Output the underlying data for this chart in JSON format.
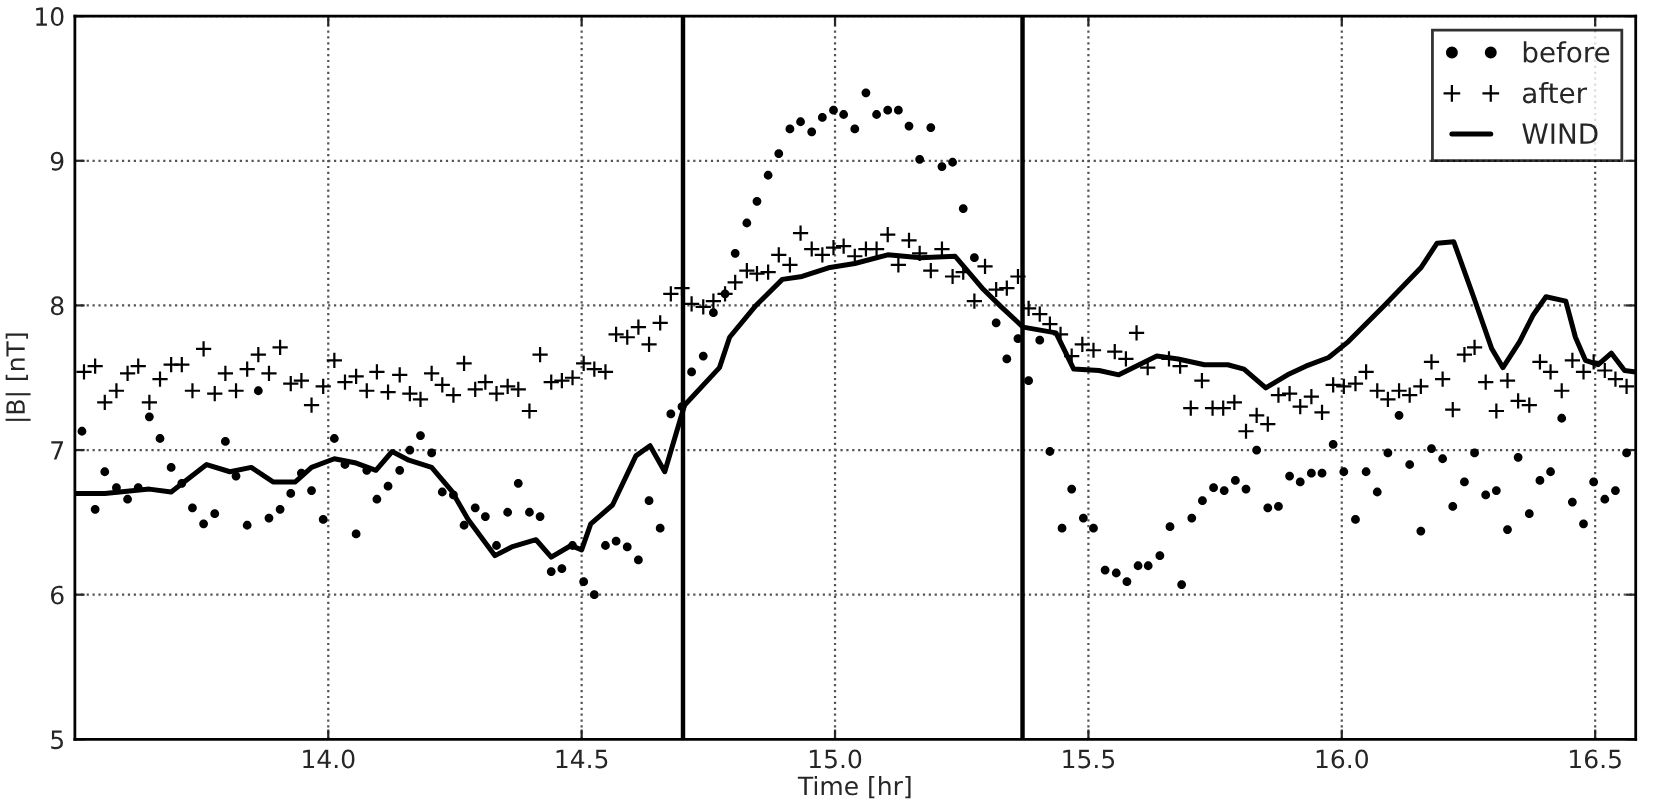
{
  "chart_data": {
    "type": "scatter",
    "xlabel": "Time [hr]",
    "ylabel": "|B| [nT]",
    "xlim": [
      13.5,
      16.58
    ],
    "ylim": [
      5,
      10
    ],
    "xticks": [
      {
        "value": 14.0,
        "label": "14.0"
      },
      {
        "value": 14.5,
        "label": "14.5"
      },
      {
        "value": 15.0,
        "label": "15.0"
      },
      {
        "value": 15.5,
        "label": "15.5"
      },
      {
        "value": 16.0,
        "label": "16.0"
      },
      {
        "value": 16.5,
        "label": "16.5"
      }
    ],
    "yticks": [
      5,
      6,
      7,
      8,
      9,
      10
    ],
    "grid": true,
    "legend": "top right",
    "ref_lines": [
      {
        "axis": "x",
        "value": 14.7,
        "color": "#000000",
        "line_style": "solid"
      },
      {
        "axis": "x",
        "value": 15.37,
        "color": "#000000",
        "line_style": "solid"
      }
    ],
    "series": [
      {
        "name": "before",
        "marker": "circle",
        "color": "#000000",
        "x": [
          13.514,
          13.54,
          13.559,
          13.582,
          13.604,
          13.625,
          13.647,
          13.668,
          13.69,
          13.711,
          13.732,
          13.754,
          13.776,
          13.797,
          13.818,
          13.84,
          13.862,
          13.883,
          13.905,
          13.926,
          13.947,
          13.967,
          13.99,
          14.012,
          14.033,
          14.055,
          14.076,
          14.096,
          14.118,
          14.141,
          14.161,
          14.182,
          14.204,
          14.225,
          14.247,
          14.268,
          14.29,
          14.31,
          14.332,
          14.354,
          14.375,
          14.397,
          14.418,
          14.44,
          14.461,
          14.482,
          14.504,
          14.525,
          14.547,
          14.568,
          14.59,
          14.612,
          14.633,
          14.655,
          14.676,
          14.698,
          14.717,
          14.74,
          14.76,
          14.783,
          14.803,
          14.826,
          14.846,
          14.868,
          14.889,
          14.911,
          14.932,
          14.954,
          14.975,
          14.997,
          15.017,
          15.039,
          15.061,
          15.082,
          15.104,
          15.125,
          15.146,
          15.167,
          15.189,
          15.211,
          15.232,
          15.253,
          15.275,
          15.318,
          15.339,
          15.361,
          15.382,
          15.404,
          15.424,
          15.448,
          15.467,
          15.49,
          15.51,
          15.533,
          15.555,
          15.576,
          15.598,
          15.618,
          15.641,
          15.661,
          15.684,
          15.704,
          15.725,
          15.747,
          15.768,
          15.79,
          15.811,
          15.832,
          15.854,
          15.875,
          15.897,
          15.918,
          15.94,
          15.961,
          15.983,
          16.004,
          16.027,
          16.048,
          16.07,
          16.091,
          16.113,
          16.134,
          16.156,
          16.177,
          16.199,
          16.219,
          16.242,
          16.262,
          16.284,
          16.305,
          16.327,
          16.348,
          16.37,
          16.391,
          16.412,
          16.434,
          16.455,
          16.477,
          16.497,
          16.519,
          16.54,
          16.562
        ],
        "values": [
          7.13,
          6.59,
          6.85,
          6.74,
          6.66,
          6.74,
          7.23,
          7.08,
          6.88,
          6.77,
          6.6,
          6.49,
          6.56,
          7.06,
          6.82,
          6.48,
          7.41,
          6.53,
          6.59,
          6.7,
          6.84,
          6.72,
          6.52,
          7.08,
          6.9,
          6.42,
          6.86,
          6.66,
          6.75,
          6.86,
          7.0,
          7.1,
          6.98,
          6.71,
          6.69,
          6.48,
          6.6,
          6.54,
          6.34,
          6.57,
          6.77,
          6.57,
          6.54,
          6.16,
          6.18,
          6.34,
          6.09,
          6.0,
          6.34,
          6.37,
          6.33,
          6.24,
          6.65,
          6.46,
          7.25,
          7.3,
          7.54,
          7.65,
          7.95,
          8.08,
          8.36,
          8.57,
          8.72,
          8.9,
          9.05,
          9.22,
          9.27,
          9.2,
          9.3,
          9.35,
          9.32,
          9.22,
          9.47,
          9.32,
          9.35,
          9.35,
          9.24,
          9.01,
          9.23,
          8.96,
          8.99,
          8.67,
          8.33,
          7.88,
          7.63,
          7.77,
          7.48,
          7.76,
          6.99,
          6.46,
          6.73,
          6.53,
          6.46,
          6.17,
          6.15,
          6.09,
          6.2,
          6.2,
          6.27,
          6.47,
          6.07,
          6.53,
          6.65,
          6.74,
          6.72,
          6.79,
          6.73,
          7.0,
          6.6,
          6.61,
          6.82,
          6.78,
          6.84,
          6.84,
          7.04,
          6.85,
          6.52,
          6.85,
          6.71,
          6.98,
          7.24,
          6.9,
          6.44,
          7.01,
          6.94,
          6.61,
          6.78,
          6.98,
          6.69,
          6.72,
          6.45,
          6.95,
          6.56,
          6.79,
          6.85,
          7.22,
          6.64,
          6.49,
          6.78,
          6.66,
          6.72,
          6.98
        ]
      },
      {
        "name": "after",
        "marker": "cross",
        "color": "#000000",
        "x": [
          13.518,
          13.54,
          13.559,
          13.582,
          13.604,
          13.625,
          13.647,
          13.668,
          13.69,
          13.711,
          13.732,
          13.754,
          13.776,
          13.797,
          13.818,
          13.84,
          13.862,
          13.883,
          13.905,
          13.926,
          13.947,
          13.967,
          13.99,
          14.012,
          14.033,
          14.055,
          14.076,
          14.096,
          14.118,
          14.141,
          14.161,
          14.182,
          14.204,
          14.225,
          14.247,
          14.268,
          14.29,
          14.31,
          14.332,
          14.354,
          14.375,
          14.397,
          14.418,
          14.44,
          14.461,
          14.482,
          14.504,
          14.525,
          14.547,
          14.568,
          14.59,
          14.612,
          14.633,
          14.655,
          14.676,
          14.698,
          14.717,
          14.74,
          14.76,
          14.783,
          14.803,
          14.826,
          14.846,
          14.868,
          14.889,
          14.911,
          14.932,
          14.954,
          14.975,
          14.997,
          15.017,
          15.039,
          15.061,
          15.082,
          15.104,
          15.125,
          15.146,
          15.167,
          15.189,
          15.211,
          15.232,
          15.253,
          15.275,
          15.296,
          15.318,
          15.339,
          15.361,
          15.382,
          15.404,
          15.424,
          15.445,
          15.467,
          15.488,
          15.51,
          15.552,
          15.574,
          15.595,
          15.617,
          15.659,
          15.681,
          15.702,
          15.724,
          15.745,
          15.766,
          15.788,
          15.811,
          15.832,
          15.854,
          15.875,
          15.897,
          15.918,
          15.94,
          15.961,
          15.983,
          16.004,
          16.027,
          16.048,
          16.07,
          16.091,
          16.113,
          16.134,
          16.156,
          16.177,
          16.199,
          16.219,
          16.242,
          16.262,
          16.284,
          16.305,
          16.327,
          16.348,
          16.37,
          16.391,
          16.412,
          16.434,
          16.455,
          16.477,
          16.497,
          16.519,
          16.54,
          16.562
        ],
        "values": [
          7.54,
          7.58,
          7.33,
          7.41,
          7.53,
          7.58,
          7.33,
          7.49,
          7.59,
          7.59,
          7.41,
          7.7,
          7.39,
          7.53,
          7.41,
          7.56,
          7.66,
          7.53,
          7.71,
          7.46,
          7.48,
          7.31,
          7.44,
          7.62,
          7.47,
          7.51,
          7.41,
          7.54,
          7.4,
          7.52,
          7.39,
          7.35,
          7.53,
          7.45,
          7.38,
          7.6,
          7.42,
          7.47,
          7.39,
          7.44,
          7.42,
          7.27,
          7.66,
          7.47,
          7.48,
          7.5,
          7.6,
          7.56,
          7.54,
          7.8,
          7.78,
          7.85,
          7.73,
          7.88,
          8.08,
          8.12,
          8.01,
          7.99,
          8.03,
          8.08,
          8.16,
          8.24,
          8.22,
          8.23,
          8.35,
          8.28,
          8.5,
          8.39,
          8.35,
          8.4,
          8.41,
          8.34,
          8.39,
          8.39,
          8.49,
          8.28,
          8.45,
          8.36,
          8.24,
          8.39,
          8.2,
          8.23,
          8.03,
          8.27,
          8.11,
          8.12,
          8.2,
          7.98,
          7.94,
          7.87,
          7.8,
          7.65,
          7.73,
          7.69,
          7.68,
          7.63,
          7.81,
          7.57,
          7.63,
          7.58,
          7.29,
          7.48,
          7.29,
          7.29,
          7.33,
          7.13,
          7.24,
          7.18,
          7.38,
          7.39,
          7.3,
          7.37,
          7.26,
          7.45,
          7.44,
          7.46,
          7.54,
          7.41,
          7.35,
          7.41,
          7.38,
          7.44,
          7.61,
          7.49,
          7.28,
          7.66,
          7.71,
          7.47,
          7.27,
          7.48,
          7.34,
          7.31,
          7.61,
          7.54,
          7.41,
          7.62,
          7.54,
          7.61,
          7.55,
          7.49,
          7.44
        ]
      },
      {
        "name": "WIND",
        "type": "line",
        "marker": "none",
        "line_style": "solid",
        "color": "#000000",
        "x": [
          13.5,
          13.559,
          13.647,
          13.69,
          13.76,
          13.806,
          13.848,
          13.891,
          13.935,
          13.967,
          14.012,
          14.055,
          14.094,
          14.126,
          14.159,
          14.204,
          14.243,
          14.276,
          14.329,
          14.362,
          14.41,
          14.44,
          14.479,
          14.5,
          14.518,
          14.561,
          14.607,
          14.635,
          14.664,
          14.703,
          14.772,
          14.792,
          14.844,
          14.896,
          14.935,
          14.987,
          15.039,
          15.104,
          15.169,
          15.237,
          15.293,
          15.328,
          15.371,
          15.436,
          15.471,
          15.521,
          15.56,
          15.635,
          15.677,
          15.729,
          15.775,
          15.807,
          15.85,
          15.893,
          15.929,
          15.974,
          16.013,
          16.084,
          16.156,
          16.188,
          16.221,
          16.26,
          16.279,
          16.296,
          16.318,
          16.351,
          16.377,
          16.403,
          16.442,
          16.461,
          16.481,
          16.506,
          16.532,
          16.558,
          16.58
        ],
        "values": [
          6.7,
          6.7,
          6.73,
          6.71,
          6.9,
          6.85,
          6.88,
          6.78,
          6.78,
          6.88,
          6.94,
          6.91,
          6.86,
          6.99,
          6.93,
          6.88,
          6.72,
          6.52,
          6.27,
          6.33,
          6.38,
          6.26,
          6.34,
          6.31,
          6.49,
          6.62,
          6.96,
          7.03,
          6.85,
          7.31,
          7.57,
          7.78,
          8.0,
          8.18,
          8.2,
          8.26,
          8.29,
          8.35,
          8.33,
          8.34,
          8.11,
          7.99,
          7.85,
          7.81,
          7.56,
          7.55,
          7.52,
          7.65,
          7.63,
          7.59,
          7.59,
          7.56,
          7.43,
          7.52,
          7.58,
          7.64,
          7.75,
          8.0,
          8.26,
          8.43,
          8.44,
          8.06,
          7.87,
          7.7,
          7.57,
          7.75,
          7.93,
          8.06,
          8.03,
          7.78,
          7.62,
          7.59,
          7.67,
          7.55,
          7.54
        ]
      }
    ]
  }
}
